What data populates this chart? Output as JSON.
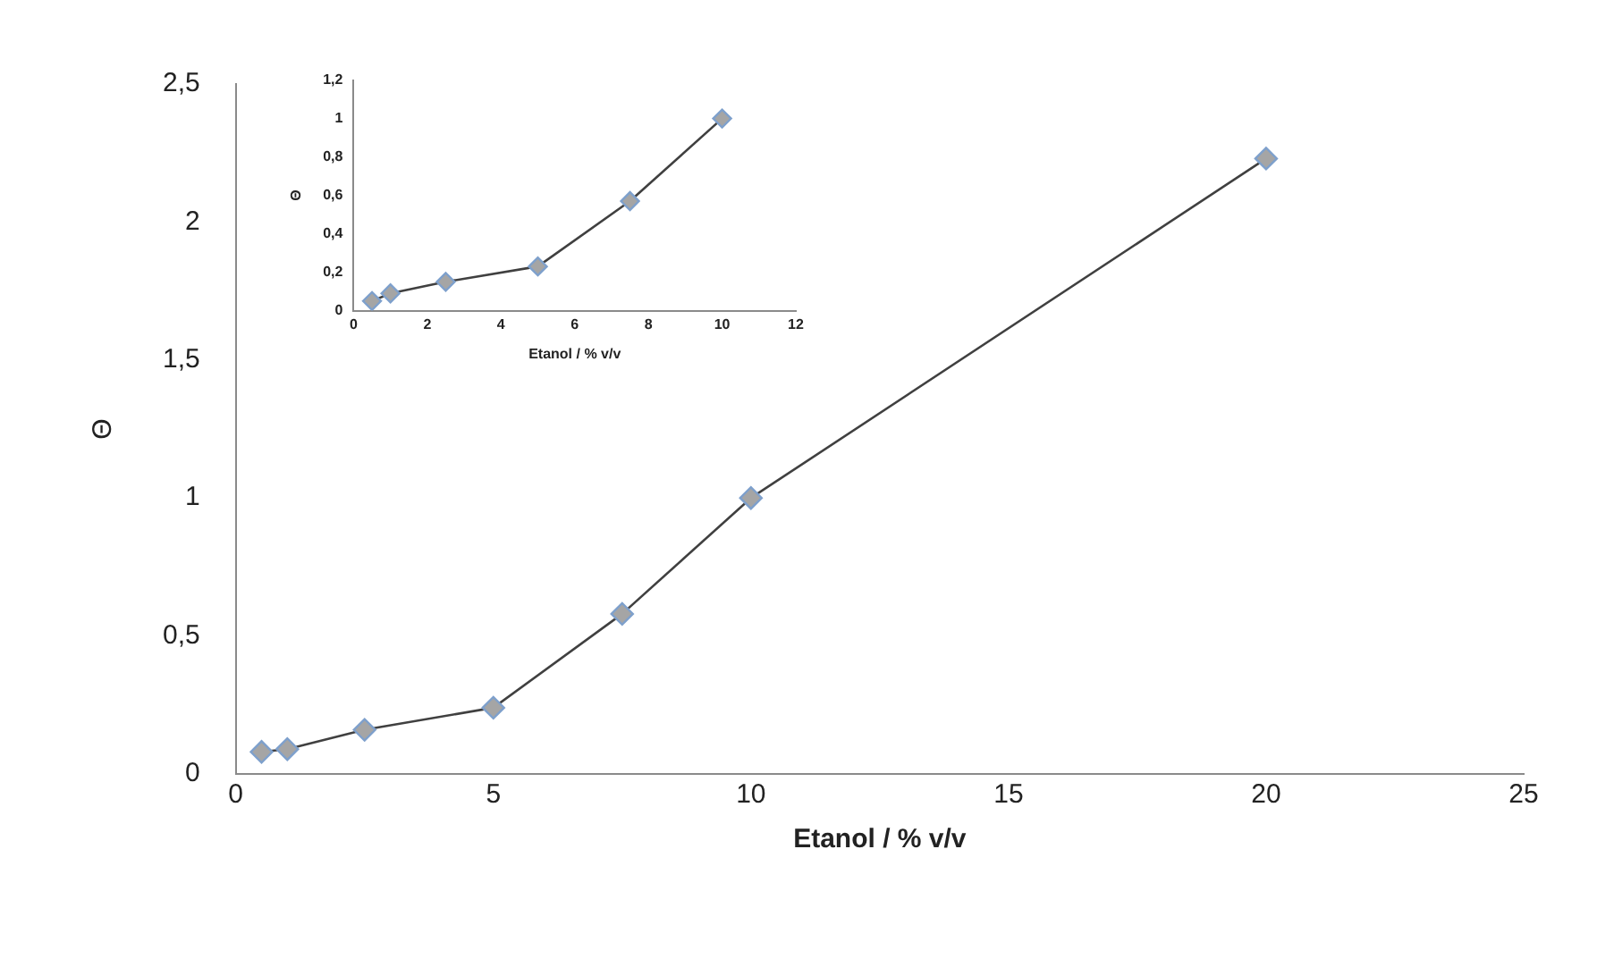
{
  "chart_data": [
    {
      "type": "line",
      "xlabel": "Etanol / % v/v",
      "ylabel": "Θ",
      "x": [
        0.5,
        1,
        2.5,
        5,
        7.5,
        10,
        20
      ],
      "series": [
        {
          "color": "#404040",
          "values": [
            0.08,
            0.09,
            0.16,
            0.24,
            0.58,
            1.0,
            2.23
          ]
        }
      ],
      "xlim": [
        0,
        25
      ],
      "xticks": [
        0,
        5,
        10,
        15,
        20,
        25
      ],
      "ylim": [
        0,
        2.5
      ],
      "yticks": [
        0,
        {
          "value": 0.5,
          "label": "0,5"
        },
        1,
        {
          "value": 1.5,
          "label": "1,5"
        },
        2,
        {
          "value": 2.5,
          "label": "2,5"
        }
      ],
      "grid": false,
      "legend": false,
      "marker": "diamond",
      "line_style": "solid"
    },
    {
      "type": "line",
      "xlabel": "Etanol / % v/v",
      "ylabel": "Θ",
      "x": [
        0.5,
        1,
        2.5,
        5,
        7.5,
        10
      ],
      "series": [
        {
          "color": "#404040",
          "values": [
            0.05,
            0.09,
            0.15,
            0.23,
            0.57,
            1.0
          ]
        }
      ],
      "xlim": [
        0,
        12
      ],
      "xticks": [
        0,
        2,
        4,
        6,
        8,
        10,
        12
      ],
      "ylim": [
        0,
        1.2
      ],
      "yticks": [
        0,
        {
          "value": 0.2,
          "label": "0,2"
        },
        {
          "value": 0.4,
          "label": "0,4"
        },
        {
          "value": 0.6,
          "label": "0,6"
        },
        {
          "value": 0.8,
          "label": "0,8"
        },
        1,
        {
          "value": 1.2,
          "label": "1,2"
        }
      ],
      "grid": false,
      "legend": false,
      "marker": "diamond",
      "line_style": "solid"
    }
  ]
}
